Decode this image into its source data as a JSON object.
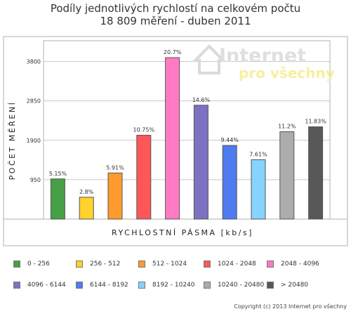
{
  "chart_data": {
    "type": "bar",
    "title": "Podíly jednotlivých rychlostí na celkovém počtu",
    "subtitle": "18 809 měření - duben 2011",
    "xlabel": "RYCHLOSTNÍ PÁSMA [kb/s]",
    "ylabel": "POČET MĚŘENÍ",
    "ylim": [
      0,
      4300
    ],
    "yticks": [
      "950",
      "1900",
      "2850",
      "3800"
    ],
    "grid": true,
    "legend": "bottom",
    "categories": [
      "0 - 256",
      "256 - 512",
      "512 - 1024",
      "1024 - 2048",
      "2048 - 4096",
      "4096 - 6144",
      "6144 - 8192",
      "8192 - 10240",
      "10240 - 20480",
      "> 20480"
    ],
    "values": [
      969,
      527,
      1112,
      2022,
      3893,
      2746,
      1776,
      1431,
      2107,
      2225
    ],
    "labels": [
      "5.15%",
      "2.8%",
      "5.91%",
      "10.75%",
      "20.7%",
      "14.6%",
      "9.44%",
      "7.61%",
      "11.2%",
      "11.83%"
    ],
    "colors": [
      "#46a046",
      "#ffd22e",
      "#ff9b2e",
      "#ff5757",
      "#ff7ac2",
      "#7b72c2",
      "#4f7bf0",
      "#86d3ff",
      "#acacac",
      "#585858"
    ]
  },
  "watermark": {
    "line1": "Internet",
    "line2": "pro všechny"
  },
  "footer": {
    "copyright": "Copyright (c) 2013 Internet pro všechny"
  }
}
